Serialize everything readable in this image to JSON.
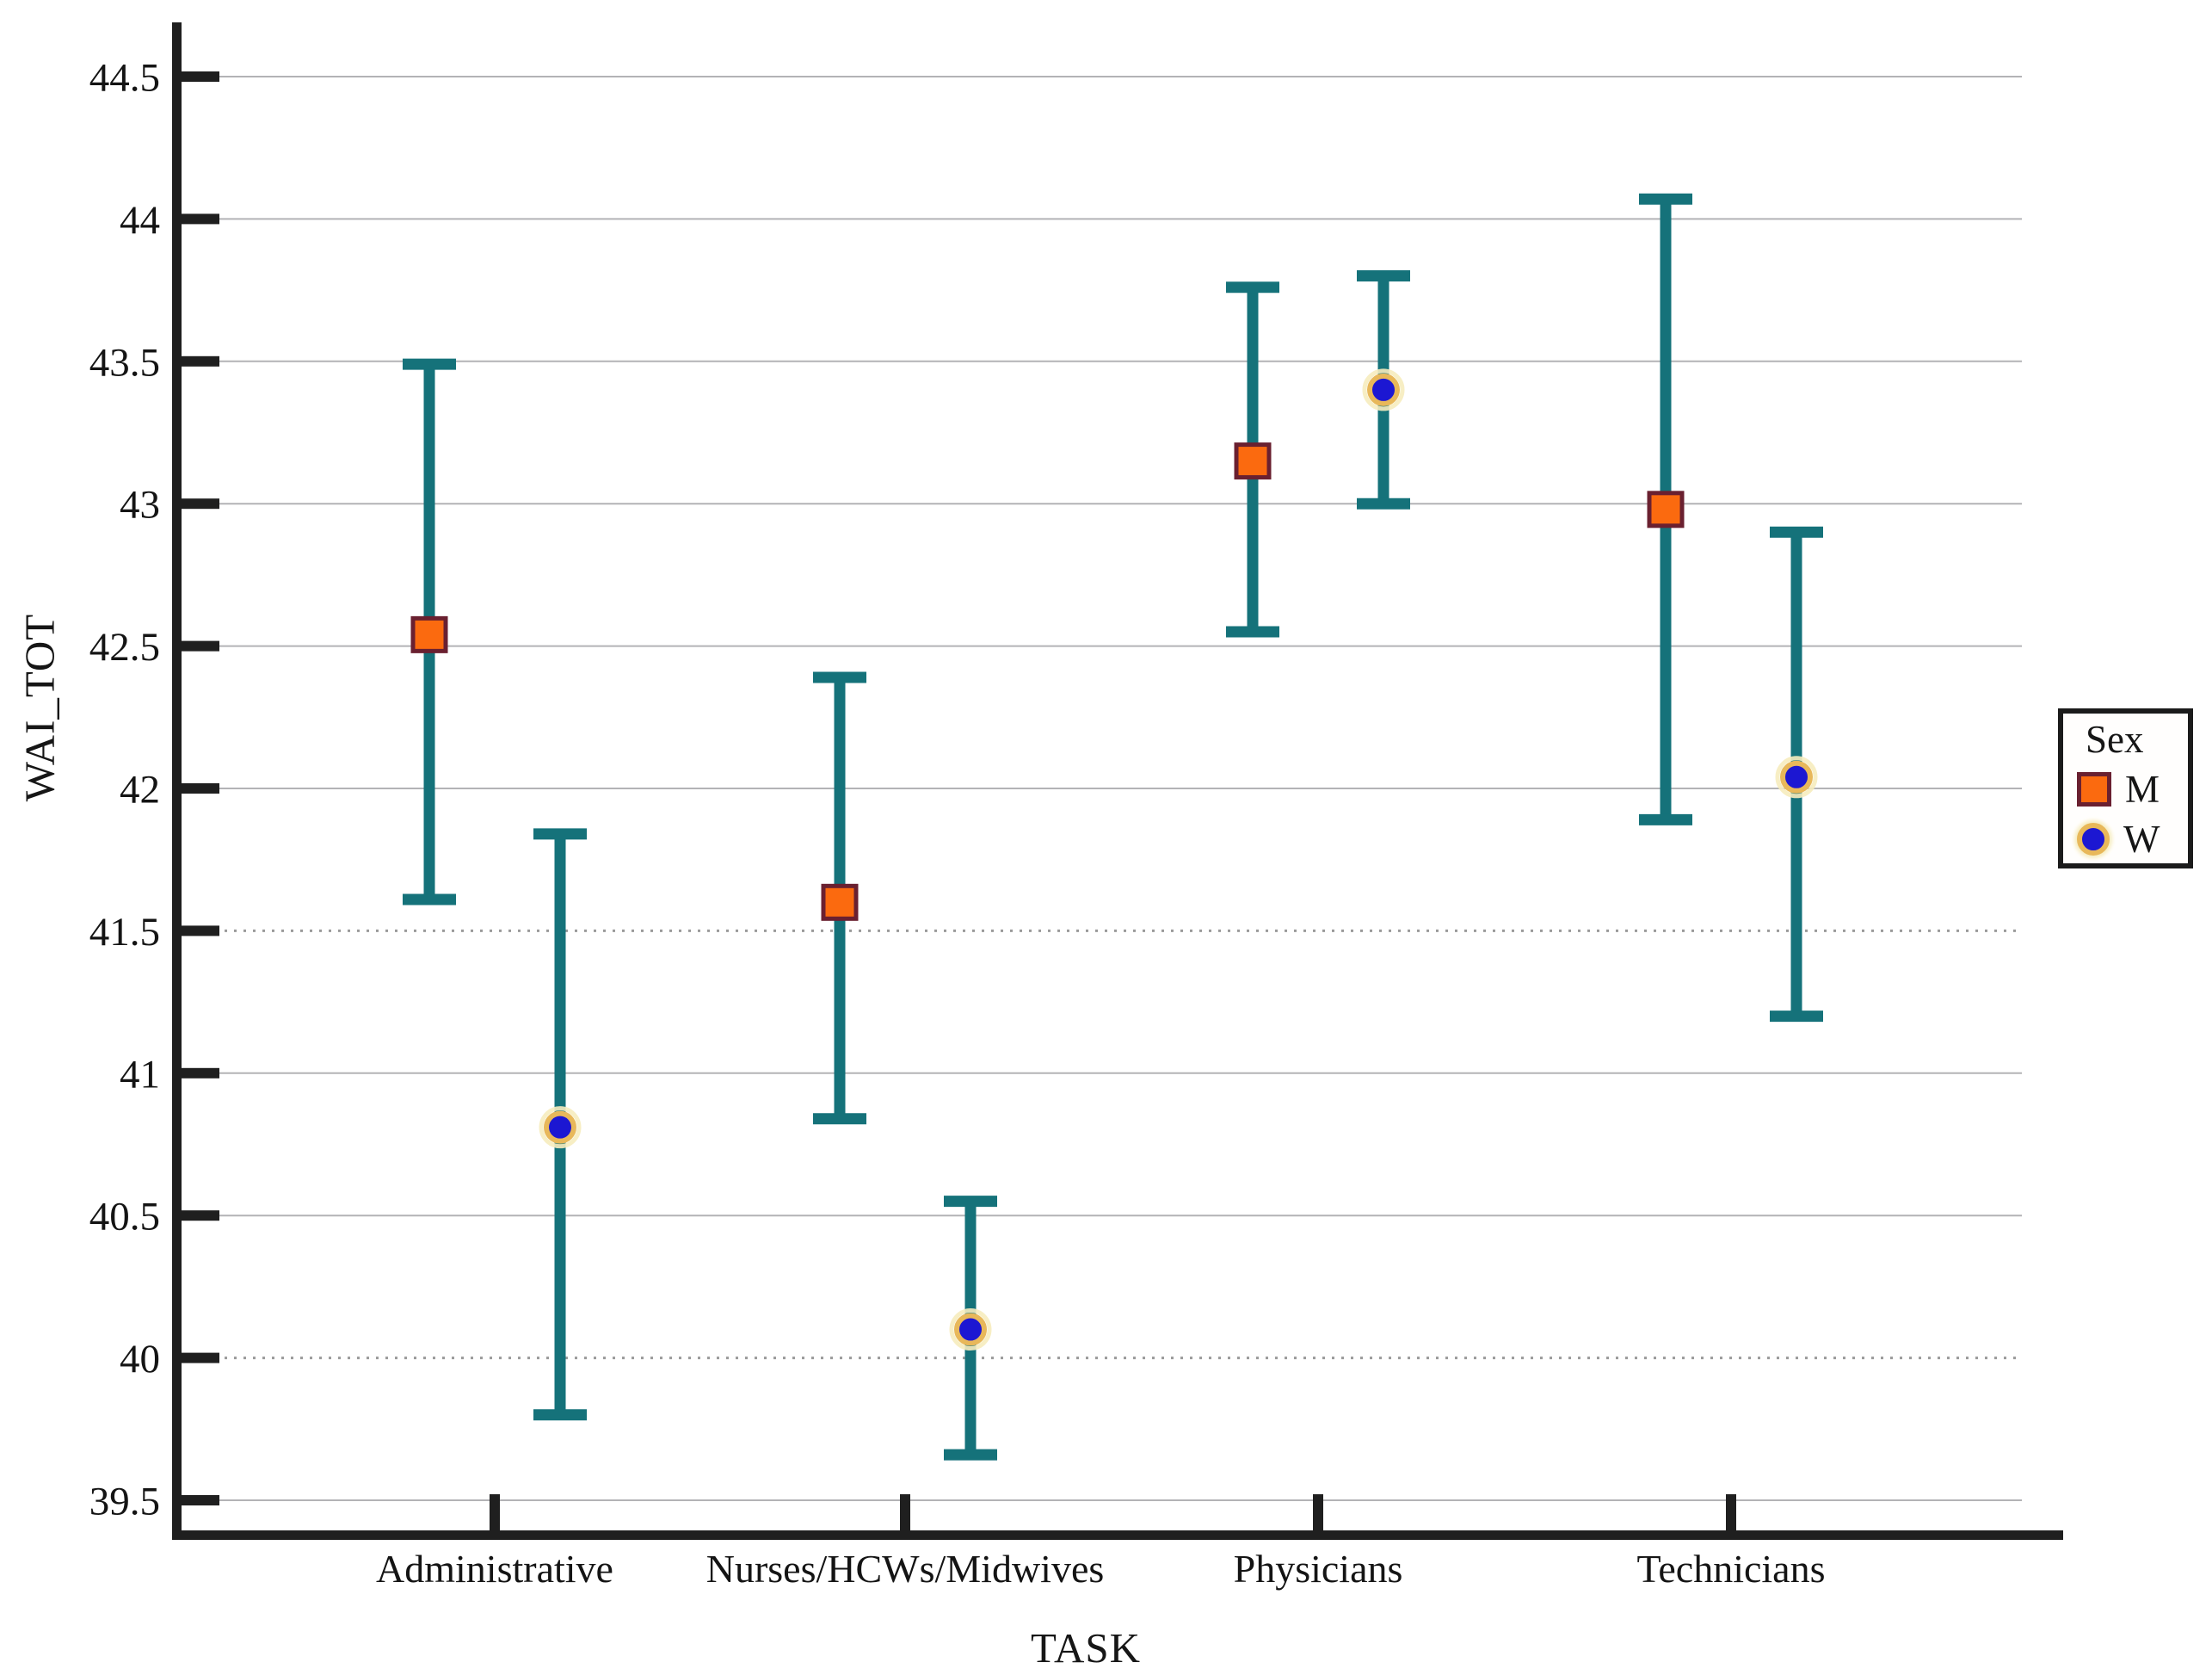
{
  "chart_data": {
    "type": "errorbar",
    "title": "",
    "xlabel": "TASK",
    "ylabel": "WAI_TOT",
    "categories": [
      "Administrative",
      "Nurses/HCWs/Midwives",
      "Physicians",
      "Technicians"
    ],
    "yticks": [
      44.5,
      44,
      43.5,
      43,
      42.5,
      42,
      41.5,
      41,
      40.5,
      40,
      39.5
    ],
    "ylim": [
      39.3,
      44.75
    ],
    "grid": true,
    "dotted_gridline_values": [
      41.5,
      40
    ],
    "errorbar_color": "#15727a",
    "legend": {
      "title": "Sex",
      "position": "right"
    },
    "series": [
      {
        "name": "M",
        "marker": "square",
        "marker_color": "#fb6a0f",
        "marker_edge_color": "#6a2030",
        "values": [
          42.54,
          41.6,
          43.15,
          42.98
        ],
        "ci_high": [
          43.49,
          42.39,
          43.76,
          44.07
        ],
        "ci_low": [
          41.61,
          40.84,
          42.55,
          41.89
        ]
      },
      {
        "name": "W",
        "marker": "circle",
        "marker_color": "#1c17d2",
        "marker_edge_color": "#e8b85a",
        "values": [
          40.81,
          40.1,
          43.4,
          42.04
        ],
        "ci_high": [
          41.84,
          40.55,
          43.8,
          42.9
        ],
        "ci_low": [
          39.8,
          39.66,
          43.0,
          41.2
        ]
      }
    ]
  }
}
